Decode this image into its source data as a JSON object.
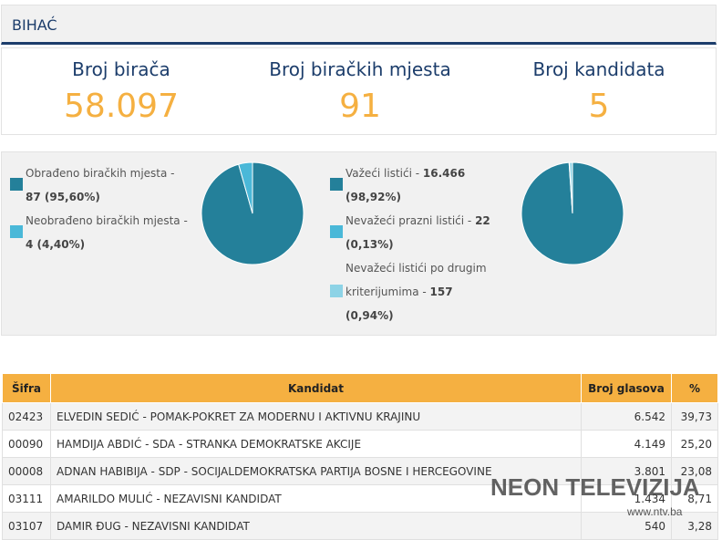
{
  "header": {
    "title": "BIHAĆ"
  },
  "stats": [
    {
      "label": "Broj birača",
      "value": "58.097"
    },
    {
      "label": "Broj biračkih mjesta",
      "value": "91"
    },
    {
      "label": "Broj kandidata",
      "value": "5"
    }
  ],
  "colors": {
    "dark_teal": "#24809a",
    "light_teal": "#4ab8d8",
    "pale_teal": "#8dd3e6",
    "orange": "#f5b041",
    "navy": "#1c3d6b"
  },
  "polling_places": {
    "legend": [
      {
        "text": "Obrađeno biračkih mjesta - ",
        "bold": "87 (95,60%)",
        "color": "#24809a"
      },
      {
        "text": "Neobrađeno biračkih mjesta - ",
        "bold": "4 (4,40%)",
        "color": "#4ab8d8"
      }
    ],
    "chart_data": {
      "type": "pie",
      "labels": [
        "Obrađeno biračkih mjesta",
        "Neobrađeno biračkih mjesta"
      ],
      "values": [
        87,
        4
      ]
    }
  },
  "ballots": {
    "legend": [
      {
        "text": "Važeći listići - ",
        "bold": "16.466",
        "pct": "(98,92%)",
        "color": "#24809a"
      },
      {
        "text": "Nevažeći prazni listići - ",
        "bold": "22",
        "pct": "(0,13%)",
        "color": "#4ab8d8"
      },
      {
        "text_line1": "Nevažeći listići po drugim",
        "text": "kriterijumima - ",
        "bold": "157",
        "pct": "(0,94%)",
        "color": "#8dd3e6"
      }
    ],
    "chart_data": {
      "type": "pie",
      "labels": [
        "Važeći listići",
        "Nevažeći prazni listići",
        "Nevažeći listići po drugim kriterijumima"
      ],
      "values": [
        16466,
        22,
        157
      ]
    }
  },
  "table": {
    "headers": [
      "Šifra",
      "Kandidat",
      "Broj glasova",
      "%"
    ],
    "rows": [
      {
        "code": "02423",
        "candidate": "ELVEDIN SEDIĆ - POMAK-POKRET ZA MODERNU I AKTIVNU KRAJINU",
        "votes": "6.542",
        "pct": "39,73"
      },
      {
        "code": "00090",
        "candidate": "HAMDIJA ABDIĆ - SDA - STRANKA DEMOKRATSKE AKCIJE",
        "votes": "4.149",
        "pct": "25,20"
      },
      {
        "code": "00008",
        "candidate": "ADNAN HABIBIJA - SDP - SOCIJALDEMOKRATSKA PARTIJA BOSNE I HERCEGOVINE",
        "votes": "3.801",
        "pct": "23,08"
      },
      {
        "code": "03111",
        "candidate": "AMARILDO MULIĆ - NEZAVISNI KANDIDAT",
        "votes": "1.434",
        "pct": "8,71"
      },
      {
        "code": "03107",
        "candidate": "DAMIR ĐUG - NEZAVISNI KANDIDAT",
        "votes": "540",
        "pct": "3,28"
      }
    ]
  },
  "watermark": {
    "text": "NEON TELEVIZIJA",
    "url": "www.ntv.ba"
  }
}
